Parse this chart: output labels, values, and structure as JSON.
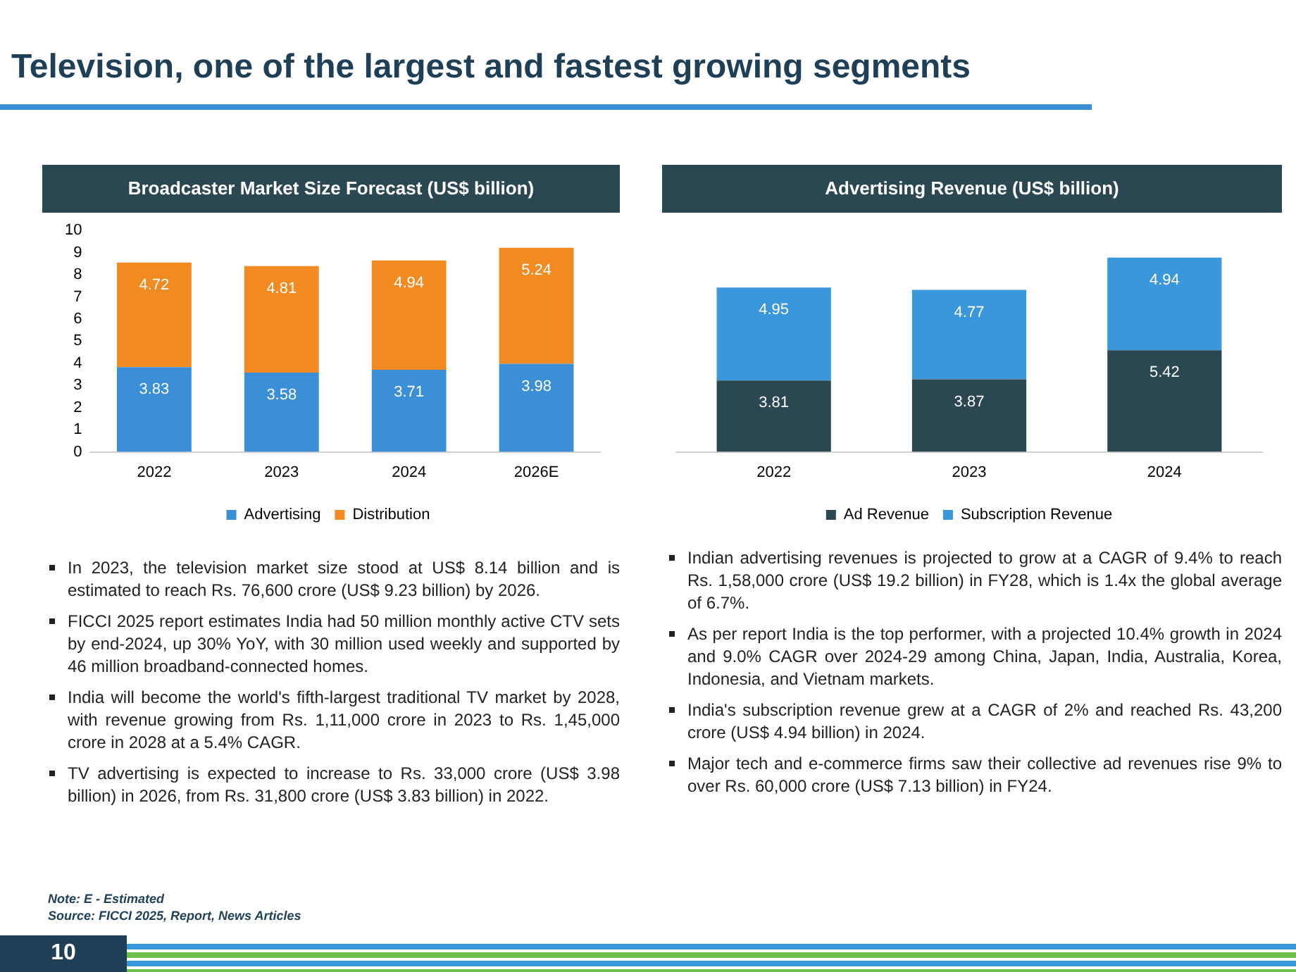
{
  "chart_data": [
    {
      "type": "other",
      "title": "Television, one of the largest and fastest growing segments",
      "annotations": [
        "Note: E - Estimated",
        "Source: FICCI 2025, Report, News Articles",
        "10"
      ]
    },
    {
      "type": "bar",
      "title": "Broadcaster Market Size Forecast (US$ billion)",
      "categories": [
        "2022",
        "2023",
        "2024",
        "2026E"
      ],
      "stacked": true,
      "data_labels": true,
      "legend": "bottom",
      "grid": false,
      "ylim": [
        0,
        10
      ],
      "yticks": [
        0,
        1,
        2,
        3,
        4,
        5,
        6,
        7,
        8,
        9,
        10
      ],
      "series": [
        {
          "name": "Advertising",
          "color": "#3b8fd6",
          "values": [
            3.83,
            3.58,
            3.71,
            3.98
          ]
        },
        {
          "name": "Distribution",
          "color": "#f28a22",
          "values": [
            4.72,
            4.81,
            4.94,
            5.24
          ]
        }
      ],
      "annotations": [
        "In 2023, the television market size stood at US$ 8.14 billion and is estimated to reach Rs. 76,600 crore  (US$ 9.23 billion) by 2026.",
        "FICCI 2025 report estimates India had 50 million monthly active CTV sets by end-2024, up 30% YoY, with 30 million used weekly and supported by 46 million broadband-connected homes.",
        "India will become the world's fifth-largest traditional TV market by 2028, with revenue growing from Rs. 1,11,000 crore in 2023 to Rs. 1,45,000 crore in 2028 at a 5.4% CAGR.",
        "TV advertising is expected to increase to Rs. 33,000 crore (US$ 3.98 billion) in 2026, from Rs. 31,800 crore (US$ 3.83 billion) in 2022."
      ]
    },
    {
      "type": "bar",
      "title": "Advertising Revenue (US$ billion)",
      "categories": [
        "2022",
        "2023",
        "2024"
      ],
      "stacked": true,
      "data_labels": true,
      "legend": "bottom",
      "grid": false,
      "tick_labels": "x",
      "series": [
        {
          "name": "Ad Revenue",
          "color": "#2b4752",
          "values": [
            3.81,
            3.87,
            5.42
          ]
        },
        {
          "name": "Subscription Revenue",
          "color": "#3b97dc",
          "values": [
            4.95,
            4.77,
            4.94
          ]
        }
      ],
      "annotations": [
        "Indian advertising revenues is projected to grow at a CAGR of 9.4% to reach Rs. 1,58,000 crore (US$ 19.2 billion) in FY28, which is 1.4x the global average of 6.7%.",
        "As per report India is the top performer, with a projected 10.4% growth in 2024 and 9.0% CAGR over 2024-29 among China, Japan, India, Australia, Korea, Indonesia, and Vietnam markets.",
        "India's subscription revenue grew at a CAGR of 2% and reached Rs. 43,200 crore (US$ 4.94 billion) in 2024.",
        "Major tech and e-commerce firms saw their collective ad revenues rise 9% to over Rs. 60,000 crore (US$ 7.13 billion) in FY24."
      ]
    }
  ]
}
